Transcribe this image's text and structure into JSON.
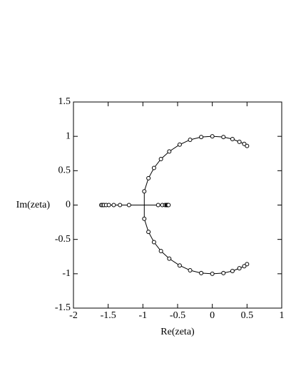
{
  "chart_data": {
    "type": "scatter",
    "x_label": "Re(zeta)",
    "y_label": "Im(zeta)",
    "xlim": [
      -2,
      1
    ],
    "ylim": [
      -1.5,
      1.5
    ],
    "xticks": [
      -2,
      -1.5,
      -1,
      -0.5,
      0,
      0.5,
      1
    ],
    "yticks": [
      -1.5,
      -1,
      -0.5,
      0,
      0.5,
      1,
      1.5
    ],
    "series": [
      {
        "color": "#000000",
        "x": [
          0.5,
          0.46,
          0.39,
          0.29,
          0.16,
          0,
          -0.16,
          -0.32,
          -0.47,
          -0.62,
          -0.74,
          -0.84,
          -0.92,
          -0.98,
          -0.98,
          -0.92,
          -0.84,
          -0.74,
          -0.62,
          -0.47,
          -0.32,
          -0.16,
          0,
          0.16,
          0.29,
          0.39,
          0.46,
          0.5
        ],
        "values": [
          -0.86,
          -0.89,
          -0.92,
          -0.96,
          -0.99,
          -1,
          -0.99,
          -0.95,
          -0.88,
          -0.78,
          -0.67,
          -0.54,
          -0.39,
          -0.2,
          0.2,
          0.39,
          0.54,
          0.67,
          0.78,
          0.88,
          0.95,
          0.99,
          1,
          0.99,
          0.96,
          0.92,
          0.89,
          0.86
        ]
      },
      {
        "color": "#000000",
        "x": [
          -1.6,
          -1.58,
          -1.56,
          -1.53,
          -1.49,
          -1.42,
          -1.33,
          -1.2,
          -0.78,
          -0.72,
          -0.68,
          -0.66,
          -0.65,
          -0.64,
          -0.63
        ],
        "values": [
          0,
          0,
          0,
          0,
          0,
          0,
          0,
          0,
          0,
          0,
          0,
          0,
          0,
          0,
          0
        ]
      }
    ]
  }
}
